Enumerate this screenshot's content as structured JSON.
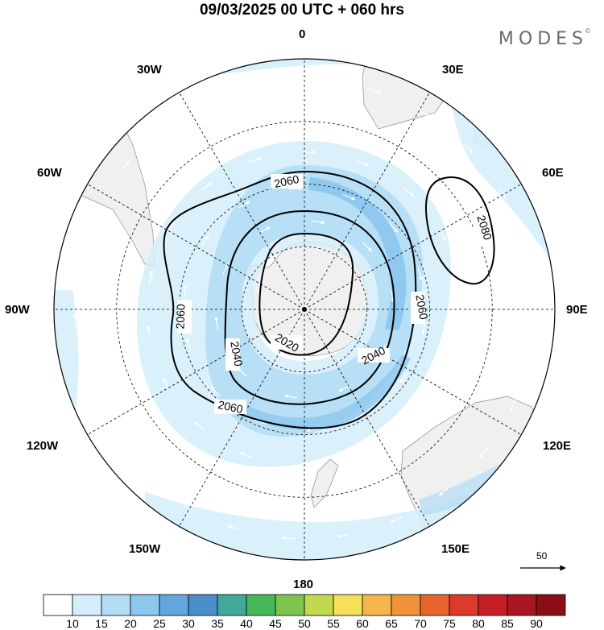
{
  "title": "09/03/2025  00 UTC  + 060 hrs",
  "brand": "MODES",
  "brand_mark": "©",
  "longitude_labels": {
    "lon_0": "0",
    "lon_30e": "30E",
    "lon_60e": "60E",
    "lon_90e": "90E",
    "lon_120e": "120E",
    "lon_150e": "150E",
    "lon_180": "180",
    "lon_150w": "150W",
    "lon_120w": "120W",
    "lon_90w": "90W",
    "lon_60w": "60W",
    "lon_30w": "30W"
  },
  "contours": {
    "c2020": "2020",
    "c2040a": "2040",
    "c2040b": "2040",
    "c2060a": "2060",
    "c2060b": "2060",
    "c2060c": "2060",
    "c2060d": "2060",
    "c2080": "2080"
  },
  "reference_vector": "50",
  "colorbar": {
    "labels": [
      "10",
      "15",
      "20",
      "25",
      "30",
      "35",
      "40",
      "45",
      "50",
      "55",
      "60",
      "65",
      "70",
      "75",
      "80",
      "85",
      "90"
    ],
    "colors": [
      "#ffffff",
      "#d4eefb",
      "#b2ddf5",
      "#8cc7ee",
      "#63a6dc",
      "#4a8ec9",
      "#43a89a",
      "#47b85a",
      "#7ec44e",
      "#c2d84d",
      "#f6e05a",
      "#f4b64a",
      "#f0923a",
      "#e8642e",
      "#dc3a2a",
      "#c41f24",
      "#a8161f",
      "#8a0f14"
    ]
  },
  "colors": {
    "land": "#f0f0f0",
    "jet_light": "#d4eefb",
    "jet_mid": "#b2ddf5",
    "jet_strong": "#8cc7ee",
    "contour": "#000000",
    "grid": "#000000",
    "brand": "#6a6a6a"
  }
}
